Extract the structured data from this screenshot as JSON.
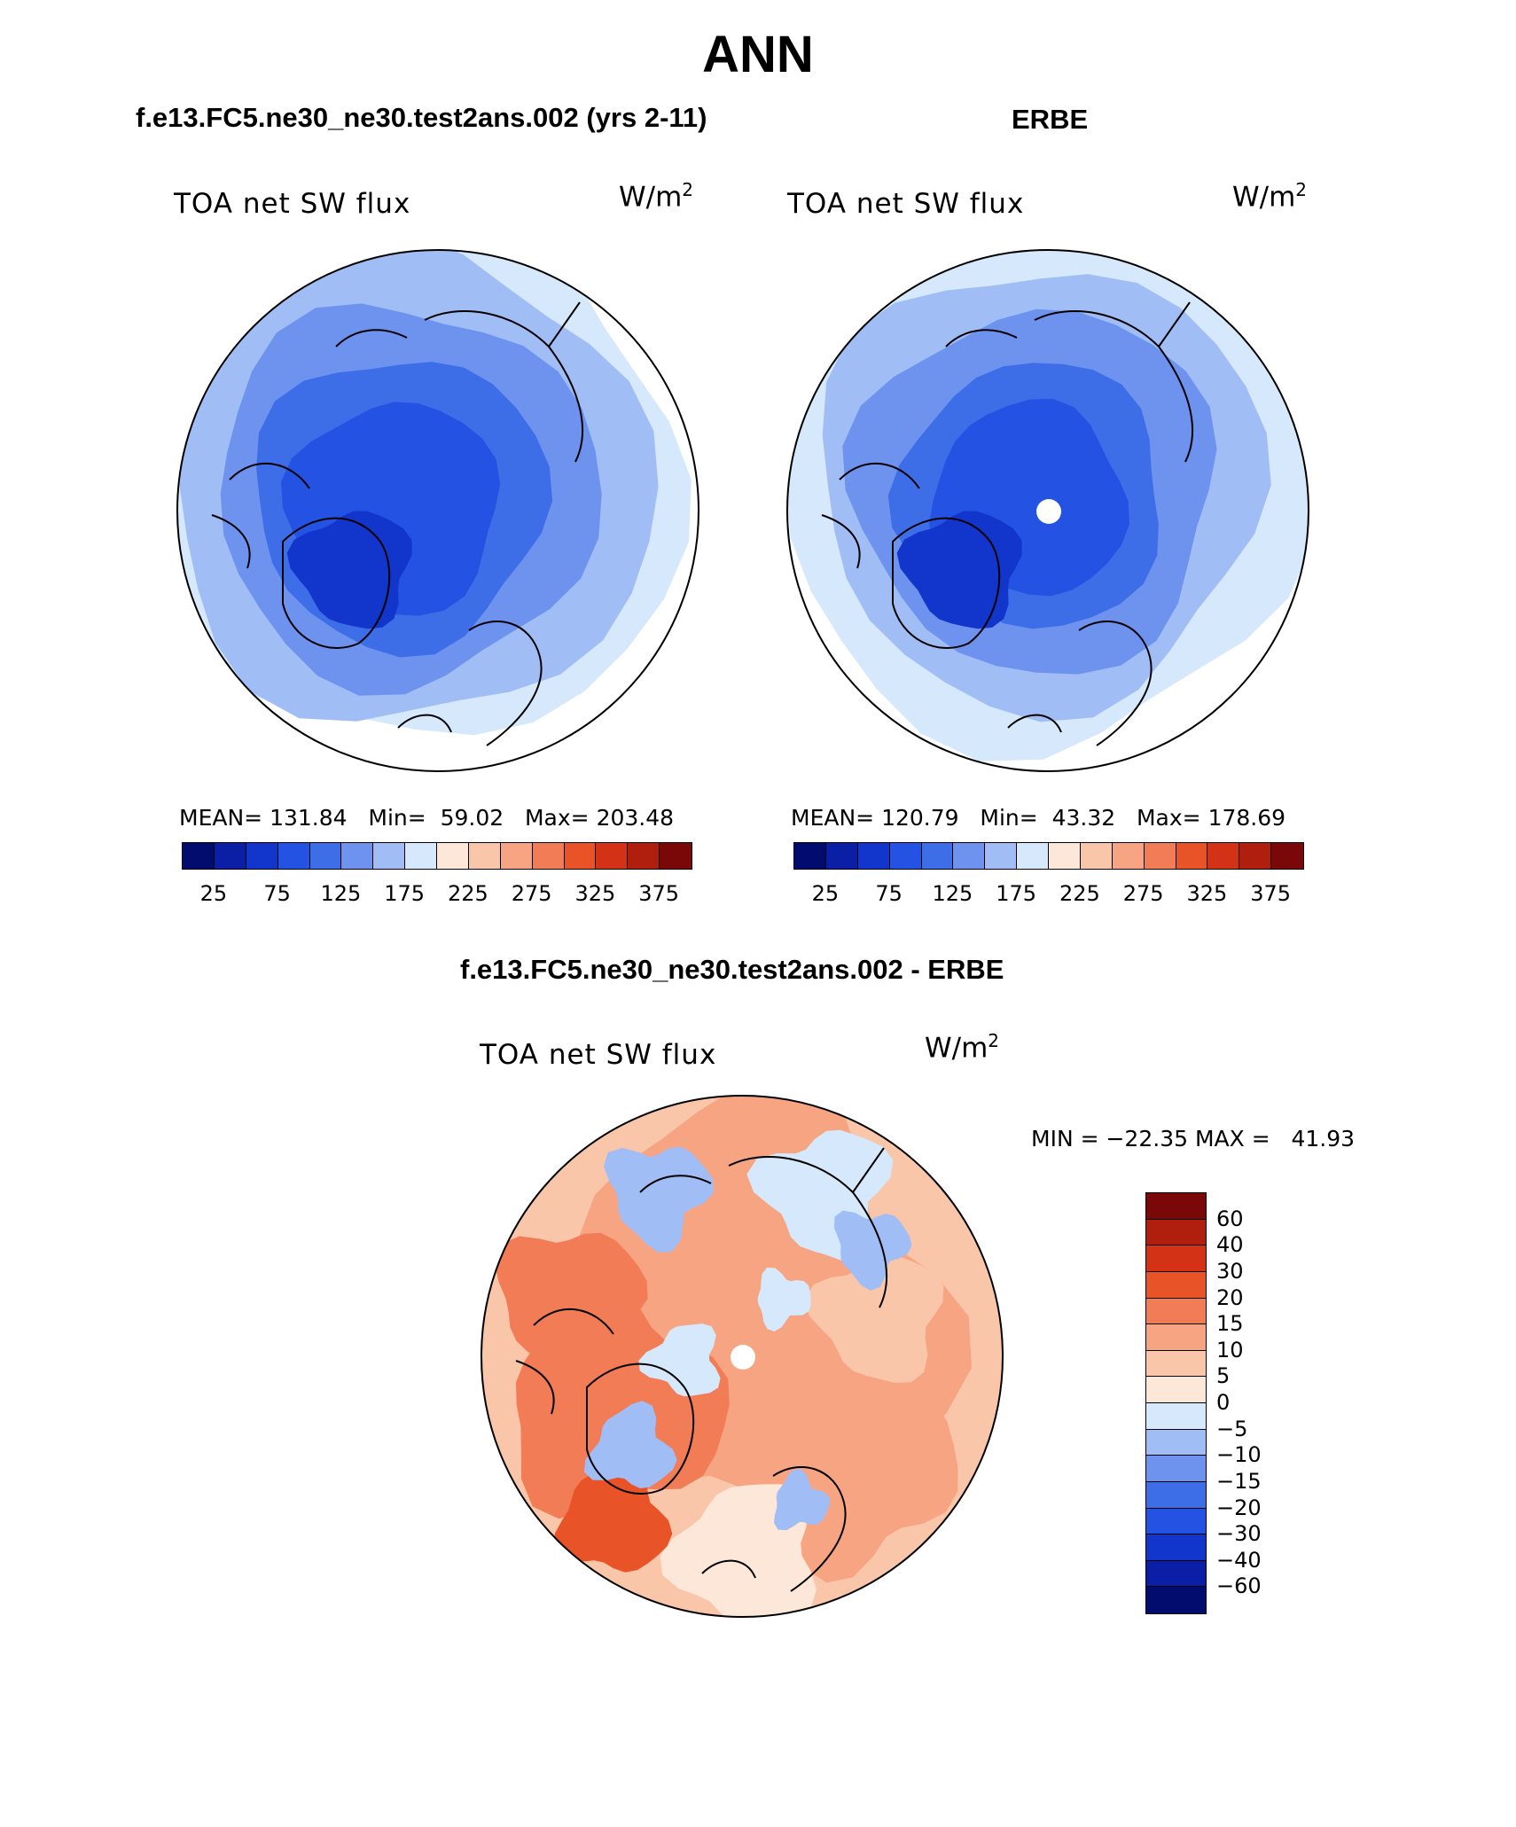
{
  "figure": {
    "title": "ANN",
    "case_title": "f.e13.FC5.ne30_ne30.test2ans.002 (yrs 2-11)",
    "obs_title": "ERBE",
    "diff_title": "f.e13.FC5.ne30_ne30.test2ans.002 - ERBE"
  },
  "chart_data": [
    {
      "type": "heatmap",
      "projection": "north polar stereographic",
      "title": "f.e13.FC5.ne30_ne30.test2ans.002 (yrs 2-11)",
      "variable": "TOA net SW flux",
      "units_base": "W/m",
      "units_exp": "2",
      "mean": "131.84",
      "min": "59.02",
      "max": "203.48",
      "stats_text": "MEAN= 131.84   Min=  59.02   Max= 203.48",
      "colorbar_orientation": "horizontal",
      "colorbar_colors": [
        "#020c6e",
        "#0a1fa6",
        "#1236cc",
        "#2452e2",
        "#3d6ee8",
        "#6d93ee",
        "#a1bdf5",
        "#d6e8fb",
        "#fde7d8",
        "#f9c6aa",
        "#f7a482",
        "#f17c55",
        "#e85427",
        "#d43216",
        "#b01f0d",
        "#7a0808"
      ],
      "colorbar_labels": [
        "25",
        "75",
        "125",
        "175",
        "225",
        "275",
        "325",
        "375"
      ]
    },
    {
      "type": "heatmap",
      "projection": "north polar stereographic",
      "title": "ERBE",
      "variable": "TOA net SW flux",
      "units_base": "W/m",
      "units_exp": "2",
      "mean": "120.79",
      "min": "43.32",
      "max": "178.69",
      "stats_text": "MEAN= 120.79   Min=  43.32   Max= 178.69",
      "colorbar_orientation": "horizontal",
      "colorbar_colors": [
        "#020c6e",
        "#0a1fa6",
        "#1236cc",
        "#2452e2",
        "#3d6ee8",
        "#6d93ee",
        "#a1bdf5",
        "#d6e8fb",
        "#fde7d8",
        "#f9c6aa",
        "#f7a482",
        "#f17c55",
        "#e85427",
        "#d43216",
        "#b01f0d",
        "#7a0808"
      ],
      "colorbar_labels": [
        "25",
        "75",
        "125",
        "175",
        "225",
        "275",
        "325",
        "375"
      ]
    },
    {
      "type": "heatmap",
      "projection": "north polar stereographic",
      "title": "f.e13.FC5.ne30_ne30.test2ans.002 - ERBE",
      "variable": "TOA net SW flux",
      "units_base": "W/m",
      "units_exp": "2",
      "min": "-22.35",
      "max": "41.93",
      "stats_text": "MIN = −22.35 MAX =   41.93",
      "colorbar_orientation": "vertical",
      "colorbar_colors": [
        "#7a0808",
        "#b01f0d",
        "#d43216",
        "#e85427",
        "#f17c55",
        "#f7a482",
        "#f9c6aa",
        "#fde7d8",
        "#d6e8fb",
        "#a1bdf5",
        "#6d93ee",
        "#3d6ee8",
        "#2452e2",
        "#1236cc",
        "#0a1fa6",
        "#020c6e"
      ],
      "colorbar_labels": [
        "60",
        "40",
        "30",
        "20",
        "15",
        "10",
        "5",
        "0",
        "−5",
        "−10",
        "−15",
        "−20",
        "−30",
        "−40",
        "−60"
      ]
    }
  ]
}
